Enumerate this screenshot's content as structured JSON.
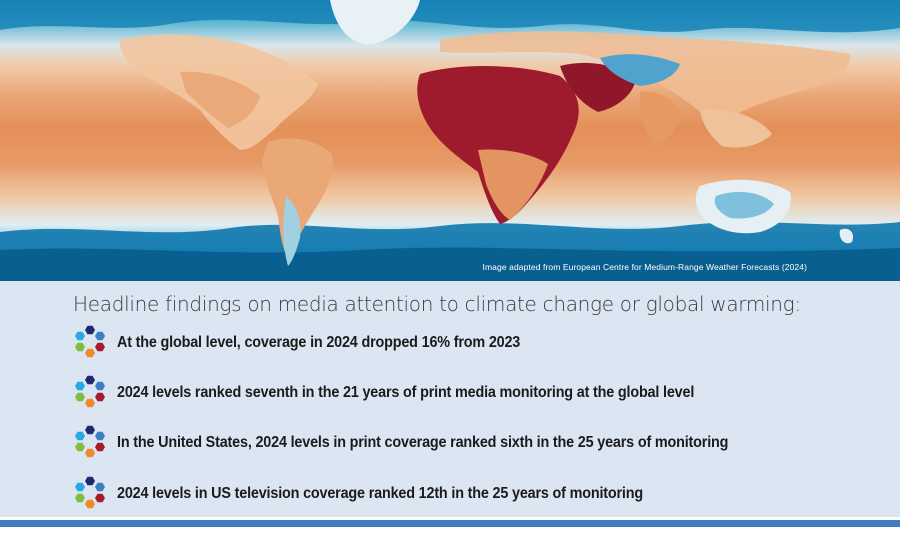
{
  "image_credit": "Image adapted from European Centre for Medium-Range Weather Forecasts (2024)",
  "headline": "Headline findings on media attention to climate change or global warming:",
  "findings": [
    {
      "text": "At the global level, coverage in 2024 dropped 16% from 2023",
      "icon": "hexagon-cluster-icon"
    },
    {
      "text": "2024 levels ranked seventh in the 21 years of print media monitoring at the global level",
      "icon": "hexagon-cluster-icon"
    },
    {
      "text": "In the United States, 2024 levels in print coverage ranked sixth in the 25 years of monitoring",
      "icon": "hexagon-cluster-icon"
    },
    {
      "text": "2024 levels in US television coverage ranked 12th in the 25 years of monitoring",
      "icon": "hexagon-cluster-icon"
    }
  ],
  "colors": {
    "panel_background": "#dce6f2",
    "accent_rule": "#3f7cc0",
    "icon_hexagons": [
      "#1f2a6e",
      "#3c7fc4",
      "#a31d2a",
      "#ef8a2c",
      "#7fbd3f",
      "#27a9e1"
    ]
  }
}
